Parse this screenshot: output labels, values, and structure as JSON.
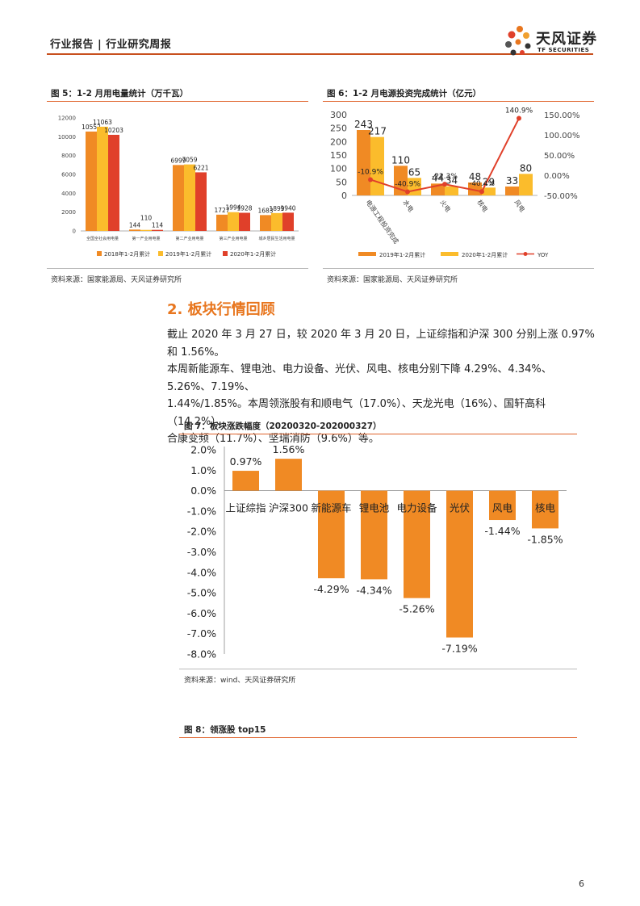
{
  "header": {
    "left_text": "行业报告 | 行业研究周报",
    "logo_cn": "天风证券",
    "logo_en": "TF SECURITIES"
  },
  "fig5": {
    "title": "图 5：1-2 月用电量统计（万千瓦）",
    "source": "资料来源：国家能源局、天风证券研究所"
  },
  "fig6": {
    "title": "图 6：1-2 月电源投资完成统计（亿元）",
    "source": "资料来源：国家能源局、天风证券研究所"
  },
  "section": {
    "title": "2. 板块行情回顾",
    "paragraph": [
      "截止 2020 年 3 月 27 日，较 2020 年 3 月 20 日，上证综指和沪深 300 分别上涨 0.97%和 1.56%。",
      "本周新能源车、锂电池、电力设备、光伏、风电、核电分别下降 4.29%、4.34%、5.26%、7.19%、",
      "1.44%/1.85%。本周领涨股有和顺电气（17.0%）、天龙光电（16%）、国轩高科（14.2%）、",
      "合康变频（11.7%）、坚瑞消防（9.6%）等。"
    ]
  },
  "fig7": {
    "title": "图 7：板块涨跌幅度（20200320-202000327）",
    "source": "资料来源：wind、天风证券研究所"
  },
  "fig8": {
    "title": "图 8：领涨股 top15"
  },
  "page_number": "6",
  "colors": {
    "orange": "#f08a24",
    "yellow": "#fbbc2c",
    "red": "#e0402a",
    "accent": "#e0622a"
  },
  "chart_data": [
    {
      "id": "fig5",
      "type": "bar",
      "categories": [
        "全国全社会用电量",
        "第一产业用电量",
        "第二产业用电量",
        "第三产业用电量",
        "城乡居民生活用电量"
      ],
      "series": [
        {
          "name": "2018年1-2月累计",
          "values": [
            10552,
            144,
            6999,
            1727,
            1683
          ]
        },
        {
          "name": "2019年1-2月累计",
          "values": [
            11063,
            110,
            7059,
            1994,
            1899
          ]
        },
        {
          "name": "2020年1-2月累计",
          "values": [
            10203,
            114,
            6221,
            1928,
            1940
          ]
        }
      ],
      "ylim": [
        0,
        12000
      ],
      "yticks": [
        "0",
        "2000",
        "4000",
        "6000",
        "8000",
        "10000",
        "12000"
      ],
      "legend_position": "bottom"
    },
    {
      "id": "fig6",
      "type": "bar",
      "categories": [
        "电源工程投资完成",
        "水电",
        "火电",
        "核电",
        "风电"
      ],
      "series": [
        {
          "name": "2019年1-2月累计",
          "values": [
            243,
            110,
            44,
            48,
            33
          ]
        },
        {
          "name": "2020年1-2月累计",
          "values": [
            217,
            65,
            34,
            29,
            80
          ]
        },
        {
          "name": "YOY",
          "type": "line",
          "axis": "right",
          "values": [
            -10.9,
            -40.9,
            -22.3,
            -40.4,
            140.9
          ],
          "labels": [
            "-10.9%",
            "-40.9%",
            "-22.3%",
            "-40.4%",
            "140.9%"
          ]
        }
      ],
      "ylim": [
        0,
        300
      ],
      "yticks": [
        "0",
        "50",
        "100",
        "150",
        "200",
        "250",
        "300"
      ],
      "y2lim": [
        -50,
        150
      ],
      "y2ticks": [
        "-50.00%",
        "0.00%",
        "50.00%",
        "100.00%",
        "150.00%"
      ],
      "legend_position": "bottom"
    },
    {
      "id": "fig7",
      "type": "bar",
      "categories": [
        "上证综指",
        "沪深300",
        "新能源车",
        "锂电池",
        "电力设备",
        "光伏",
        "风电",
        "核电"
      ],
      "values": [
        0.97,
        1.56,
        -4.29,
        -4.34,
        -5.26,
        -7.19,
        -1.44,
        -1.85
      ],
      "labels": [
        "0.97%",
        "1.56%",
        "-4.29%",
        "-4.34%",
        "-5.26%",
        "-7.19%",
        "-1.44%",
        "-1.85%"
      ],
      "ylim": [
        -8,
        2
      ],
      "yticks": [
        "2.0%",
        "1.0%",
        "0.0%",
        "-1.0%",
        "-2.0%",
        "-3.0%",
        "-4.0%",
        "-5.0%",
        "-6.0%",
        "-7.0%",
        "-8.0%"
      ]
    }
  ]
}
